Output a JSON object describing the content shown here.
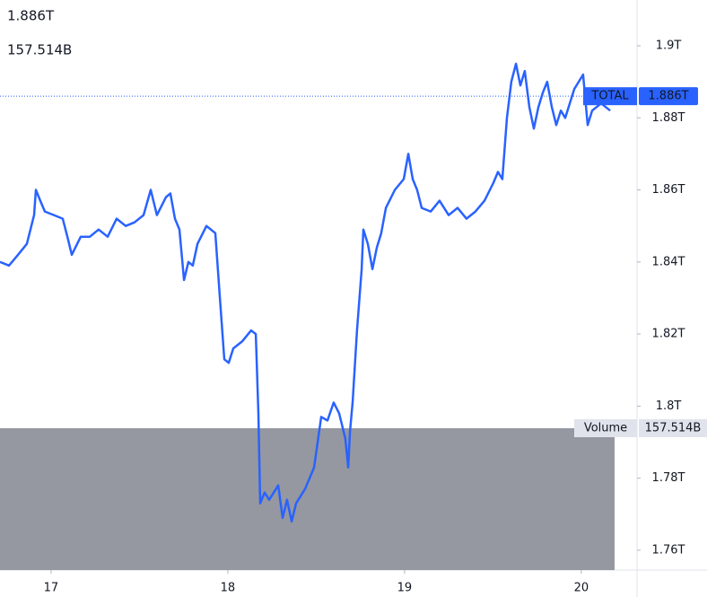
{
  "chart_data": {
    "type": "line",
    "series": [
      {
        "name": "TOTAL",
        "color": "#2962ff",
        "x": [
          16.711,
          16.762,
          16.813,
          16.863,
          16.904,
          16.914,
          16.939,
          16.965,
          17.016,
          17.066,
          17.092,
          17.117,
          17.168,
          17.219,
          17.269,
          17.32,
          17.371,
          17.422,
          17.472,
          17.523,
          17.564,
          17.599,
          17.65,
          17.675,
          17.701,
          17.726,
          17.752,
          17.777,
          17.802,
          17.828,
          17.879,
          17.929,
          17.955,
          17.98,
          18.005,
          18.031,
          18.082,
          18.132,
          18.158,
          18.173,
          18.183,
          18.208,
          18.234,
          18.285,
          18.31,
          18.335,
          18.361,
          18.386,
          18.437,
          18.488,
          18.528,
          18.564,
          18.599,
          18.63,
          18.665,
          18.681,
          18.691,
          18.706,
          18.731,
          18.757,
          18.767,
          18.792,
          18.818,
          18.843,
          18.868,
          18.894,
          18.945,
          18.995,
          19.021,
          19.046,
          19.071,
          19.097,
          19.148,
          19.198,
          19.249,
          19.3,
          19.35,
          19.401,
          19.452,
          19.503,
          19.528,
          19.553,
          19.579,
          19.604,
          19.63,
          19.655,
          19.68,
          19.706,
          19.731,
          19.757,
          19.782,
          19.807,
          19.833,
          19.858,
          19.884,
          19.909,
          19.96,
          20.01,
          20.036,
          20.061,
          20.112,
          20.163
        ],
        "values": [
          1.84,
          1.839,
          1.842,
          1.845,
          1.853,
          1.86,
          1.857,
          1.854,
          1.853,
          1.852,
          1.847,
          1.842,
          1.847,
          1.847,
          1.849,
          1.847,
          1.852,
          1.85,
          1.851,
          1.853,
          1.86,
          1.853,
          1.858,
          1.859,
          1.852,
          1.849,
          1.835,
          1.84,
          1.839,
          1.845,
          1.85,
          1.848,
          1.83,
          1.813,
          1.812,
          1.816,
          1.818,
          1.821,
          1.82,
          1.798,
          1.773,
          1.776,
          1.774,
          1.778,
          1.769,
          1.774,
          1.768,
          1.773,
          1.777,
          1.783,
          1.797,
          1.796,
          1.801,
          1.798,
          1.791,
          1.783,
          1.793,
          1.801,
          1.821,
          1.838,
          1.849,
          1.845,
          1.838,
          1.844,
          1.848,
          1.855,
          1.86,
          1.863,
          1.87,
          1.863,
          1.86,
          1.855,
          1.854,
          1.857,
          1.853,
          1.855,
          1.852,
          1.854,
          1.857,
          1.862,
          1.865,
          1.863,
          1.88,
          1.89,
          1.895,
          1.889,
          1.893,
          1.883,
          1.877,
          1.883,
          1.887,
          1.89,
          1.883,
          1.878,
          1.882,
          1.88,
          1.888,
          1.892,
          1.878,
          1.882,
          1.884,
          1.882
        ]
      }
    ],
    "last_value": {
      "value": 1.886,
      "label": "1.886T"
    },
    "volume": {
      "name": "Volume",
      "value": 157.514,
      "label": "157.514B"
    },
    "xlim": [
      16.711,
      20.315
    ],
    "xticks": [
      17,
      18,
      19,
      20
    ],
    "ylim": [
      1.7545,
      1.9127
    ],
    "yticks": [
      {
        "value": 1.76,
        "label": "1.76T"
      },
      {
        "value": 1.78,
        "label": "1.78T"
      },
      {
        "value": 1.8,
        "label": "1.8T"
      },
      {
        "value": 1.82,
        "label": "1.82T"
      },
      {
        "value": 1.84,
        "label": "1.84T"
      },
      {
        "value": 1.86,
        "label": "1.86T"
      },
      {
        "value": 1.88,
        "label": "1.88T"
      },
      {
        "value": 1.9,
        "label": "1.9T"
      }
    ]
  }
}
